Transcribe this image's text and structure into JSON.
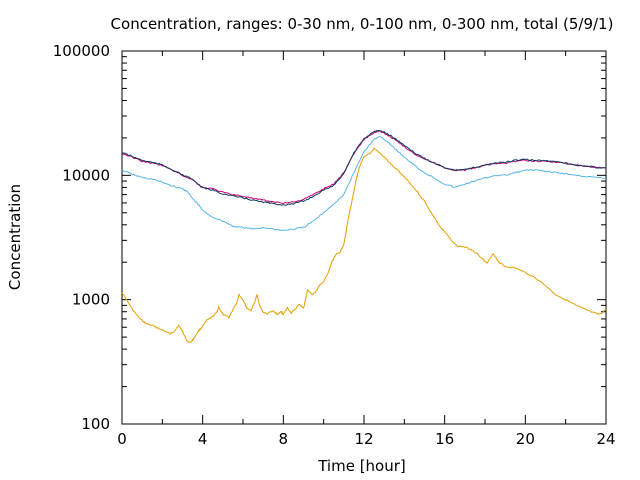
{
  "chart_data": {
    "type": "line",
    "title": "Concentration, ranges: 0-30 nm, 0-100 nm, 0-300 nm, total (5/9/1)",
    "xlabel": "Time [hour]",
    "ylabel": "Concentration",
    "xlim": [
      0,
      24
    ],
    "ylim": [
      100,
      100000
    ],
    "yscale": "log",
    "x_ticks": [
      0,
      4,
      8,
      12,
      16,
      20,
      24
    ],
    "x_tick_labels": [
      "0",
      "4",
      "8",
      "12",
      "16",
      "20",
      "24"
    ],
    "y_ticks": [
      100,
      1000,
      10000,
      100000
    ],
    "y_tick_labels": [
      "100",
      "1000",
      "10000",
      "100000"
    ],
    "grid": false,
    "legend": "none",
    "series": [
      {
        "color": "#e69f00",
        "points": [
          [
            0,
            1150
          ],
          [
            0.3,
            950
          ],
          [
            0.6,
            800
          ],
          [
            0.9,
            700
          ],
          [
            1.2,
            640
          ],
          [
            1.5,
            620
          ],
          [
            1.8,
            590
          ],
          [
            2.1,
            560
          ],
          [
            2.4,
            530
          ],
          [
            2.6,
            560
          ],
          [
            2.8,
            620
          ],
          [
            3.0,
            560
          ],
          [
            3.2,
            470
          ],
          [
            3.4,
            450
          ],
          [
            3.6,
            500
          ],
          [
            3.8,
            560
          ],
          [
            4.0,
            610
          ],
          [
            4.2,
            680
          ],
          [
            4.5,
            730
          ],
          [
            4.7,
            790
          ],
          [
            4.8,
            870
          ],
          [
            5.0,
            760
          ],
          [
            5.3,
            720
          ],
          [
            5.5,
            830
          ],
          [
            5.7,
            950
          ],
          [
            5.8,
            1100
          ],
          [
            6.0,
            1000
          ],
          [
            6.2,
            850
          ],
          [
            6.4,
            820
          ],
          [
            6.6,
            980
          ],
          [
            6.7,
            1100
          ],
          [
            6.8,
            920
          ],
          [
            7.0,
            790
          ],
          [
            7.2,
            770
          ],
          [
            7.5,
            810
          ],
          [
            7.7,
            760
          ],
          [
            7.9,
            800
          ],
          [
            8.0,
            760
          ],
          [
            8.2,
            860
          ],
          [
            8.4,
            780
          ],
          [
            8.6,
            840
          ],
          [
            8.8,
            920
          ],
          [
            9.0,
            850
          ],
          [
            9.1,
            1000
          ],
          [
            9.2,
            1200
          ],
          [
            9.4,
            1100
          ],
          [
            9.6,
            1150
          ],
          [
            9.8,
            1300
          ],
          [
            10.0,
            1400
          ],
          [
            10.2,
            1600
          ],
          [
            10.4,
            2000
          ],
          [
            10.6,
            2300
          ],
          [
            10.8,
            2400
          ],
          [
            11.0,
            2800
          ],
          [
            11.2,
            4300
          ],
          [
            11.4,
            6200
          ],
          [
            11.6,
            9000
          ],
          [
            11.8,
            12000
          ],
          [
            12.0,
            14000
          ],
          [
            12.3,
            15000
          ],
          [
            12.5,
            16500
          ],
          [
            12.8,
            15000
          ],
          [
            13.1,
            13500
          ],
          [
            13.4,
            12000
          ],
          [
            13.8,
            10500
          ],
          [
            14.2,
            9000
          ],
          [
            14.6,
            7500
          ],
          [
            15.0,
            6200
          ],
          [
            15.4,
            4800
          ],
          [
            15.8,
            3800
          ],
          [
            16.2,
            3200
          ],
          [
            16.6,
            2700
          ],
          [
            17.0,
            2650
          ],
          [
            17.4,
            2500
          ],
          [
            17.8,
            2200
          ],
          [
            18.1,
            1950
          ],
          [
            18.4,
            2350
          ],
          [
            18.7,
            2000
          ],
          [
            19.0,
            1850
          ],
          [
            19.5,
            1800
          ],
          [
            20.0,
            1650
          ],
          [
            20.5,
            1500
          ],
          [
            21.0,
            1300
          ],
          [
            21.5,
            1100
          ],
          [
            22.0,
            1000
          ],
          [
            22.5,
            900
          ],
          [
            23.0,
            830
          ],
          [
            23.4,
            780
          ],
          [
            23.7,
            760
          ],
          [
            24.0,
            840
          ]
        ]
      },
      {
        "color": "#56b4e9",
        "points": [
          [
            0,
            11000
          ],
          [
            0.5,
            10200
          ],
          [
            1.0,
            9600
          ],
          [
            1.5,
            9300
          ],
          [
            2.0,
            8800
          ],
          [
            2.5,
            8200
          ],
          [
            3.0,
            7800
          ],
          [
            3.2,
            7500
          ],
          [
            3.5,
            6500
          ],
          [
            3.8,
            5800
          ],
          [
            4.0,
            5200
          ],
          [
            4.5,
            4600
          ],
          [
            5.0,
            4300
          ],
          [
            5.5,
            3900
          ],
          [
            6.0,
            3800
          ],
          [
            6.5,
            3700
          ],
          [
            7.0,
            3800
          ],
          [
            7.5,
            3700
          ],
          [
            8.0,
            3600
          ],
          [
            8.5,
            3700
          ],
          [
            9.0,
            3800
          ],
          [
            9.5,
            4300
          ],
          [
            10.0,
            5000
          ],
          [
            10.5,
            5900
          ],
          [
            11.0,
            7000
          ],
          [
            11.5,
            10500
          ],
          [
            12.0,
            15500
          ],
          [
            12.5,
            19500
          ],
          [
            12.8,
            20500
          ],
          [
            13.2,
            18500
          ],
          [
            13.6,
            16000
          ],
          [
            14.0,
            14000
          ],
          [
            14.5,
            12000
          ],
          [
            15.0,
            10500
          ],
          [
            15.5,
            9500
          ],
          [
            16.0,
            8500
          ],
          [
            16.5,
            8000
          ],
          [
            17.0,
            8500
          ],
          [
            17.5,
            9000
          ],
          [
            18.0,
            9500
          ],
          [
            18.5,
            10000
          ],
          [
            19.0,
            10000
          ],
          [
            19.5,
            10500
          ],
          [
            20.0,
            11000
          ],
          [
            20.5,
            11000
          ],
          [
            21.0,
            10800
          ],
          [
            21.5,
            10500
          ],
          [
            22.0,
            10300
          ],
          [
            22.5,
            10000
          ],
          [
            23.0,
            9800
          ],
          [
            23.5,
            9600
          ],
          [
            24.0,
            9400
          ]
        ]
      },
      {
        "color": "#cc0077",
        "points": [
          [
            0,
            15000
          ],
          [
            0.5,
            14000
          ],
          [
            1.0,
            13000
          ],
          [
            1.5,
            12500
          ],
          [
            2.0,
            12000
          ],
          [
            2.5,
            11000
          ],
          [
            3.0,
            10000
          ],
          [
            3.5,
            9200
          ],
          [
            4.0,
            8000
          ],
          [
            4.5,
            7800
          ],
          [
            5.0,
            7300
          ],
          [
            5.5,
            7000
          ],
          [
            6.0,
            6800
          ],
          [
            6.5,
            6500
          ],
          [
            7.0,
            6300
          ],
          [
            7.5,
            6100
          ],
          [
            8.0,
            6000
          ],
          [
            8.5,
            6100
          ],
          [
            9.0,
            6400
          ],
          [
            9.5,
            7000
          ],
          [
            10.0,
            7800
          ],
          [
            10.5,
            8500
          ],
          [
            11.0,
            10500
          ],
          [
            11.5,
            15000
          ],
          [
            12.0,
            19500
          ],
          [
            12.5,
            22000
          ],
          [
            12.8,
            22500
          ],
          [
            13.2,
            21000
          ],
          [
            13.6,
            19000
          ],
          [
            14.0,
            17000
          ],
          [
            14.5,
            15000
          ],
          [
            15.0,
            13500
          ],
          [
            15.5,
            12500
          ],
          [
            16.0,
            11500
          ],
          [
            16.5,
            11000
          ],
          [
            17.0,
            11000
          ],
          [
            17.5,
            11500
          ],
          [
            18.0,
            12000
          ],
          [
            18.5,
            12500
          ],
          [
            19.0,
            12500
          ],
          [
            19.5,
            13000
          ],
          [
            20.0,
            13200
          ],
          [
            20.5,
            13000
          ],
          [
            21.0,
            13000
          ],
          [
            21.5,
            12800
          ],
          [
            22.0,
            12500
          ],
          [
            22.5,
            12000
          ],
          [
            23.0,
            11800
          ],
          [
            23.5,
            11500
          ],
          [
            24.0,
            11400
          ]
        ]
      },
      {
        "color": "#0a3a5c",
        "points": [
          [
            0,
            15300
          ],
          [
            0.5,
            14200
          ],
          [
            1.0,
            13200
          ],
          [
            1.5,
            12700
          ],
          [
            2.0,
            12100
          ],
          [
            2.5,
            11100
          ],
          [
            3.0,
            10100
          ],
          [
            3.5,
            9300
          ],
          [
            4.0,
            7900
          ],
          [
            4.5,
            7600
          ],
          [
            5.0,
            7100
          ],
          [
            5.5,
            6800
          ],
          [
            6.0,
            6600
          ],
          [
            6.5,
            6300
          ],
          [
            7.0,
            6100
          ],
          [
            7.5,
            5900
          ],
          [
            8.0,
            5800
          ],
          [
            8.5,
            5900
          ],
          [
            9.0,
            6200
          ],
          [
            9.5,
            6800
          ],
          [
            10.0,
            7600
          ],
          [
            10.5,
            8300
          ],
          [
            11.0,
            10400
          ],
          [
            11.5,
            15200
          ],
          [
            12.0,
            19800
          ],
          [
            12.5,
            22500
          ],
          [
            12.8,
            23000
          ],
          [
            13.2,
            21500
          ],
          [
            13.6,
            19400
          ],
          [
            14.0,
            17300
          ],
          [
            14.5,
            15200
          ],
          [
            15.0,
            13700
          ],
          [
            15.5,
            12600
          ],
          [
            16.0,
            11600
          ],
          [
            16.5,
            11000
          ],
          [
            17.0,
            11100
          ],
          [
            17.5,
            11600
          ],
          [
            18.0,
            12100
          ],
          [
            18.5,
            12600
          ],
          [
            19.0,
            12700
          ],
          [
            19.5,
            13200
          ],
          [
            20.0,
            13400
          ],
          [
            20.5,
            13200
          ],
          [
            21.0,
            13100
          ],
          [
            21.5,
            12900
          ],
          [
            22.0,
            12600
          ],
          [
            22.5,
            12100
          ],
          [
            23.0,
            11900
          ],
          [
            23.5,
            11600
          ],
          [
            24.0,
            11500
          ]
        ]
      }
    ]
  }
}
